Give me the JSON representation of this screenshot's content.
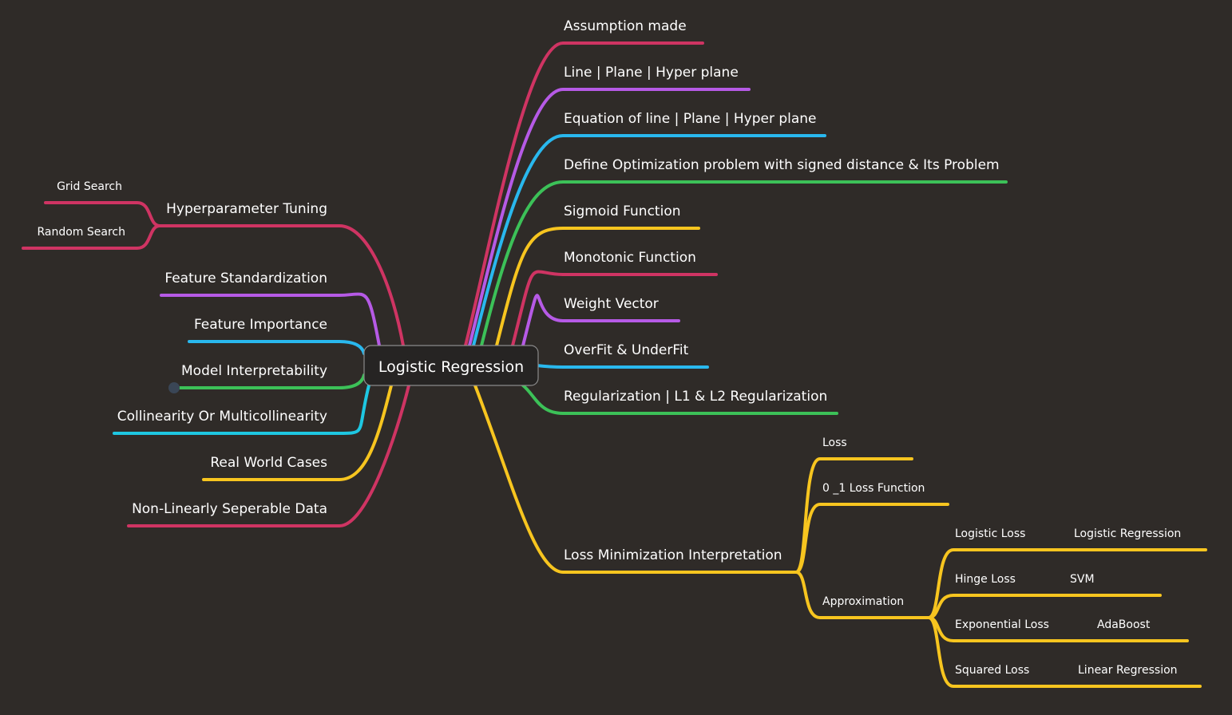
{
  "colors": {
    "background": "#2f2b28",
    "red": "#cf3463",
    "purple": "#b65ae6",
    "blue": "#29b8ee",
    "green": "#3cc158",
    "yellow": "#f7c51f",
    "cyan": "#1ec7e2",
    "center_fill": "#262423",
    "center_border": "#8a8a8a"
  },
  "center": {
    "label": "Logistic Regression"
  },
  "right_topics": [
    {
      "label": "Assumption made",
      "color": "red"
    },
    {
      "label": "Line | Plane | Hyper plane",
      "color": "purple"
    },
    {
      "label": "Equation of line | Plane | Hyper plane",
      "color": "blue"
    },
    {
      "label": "Define Optimization problem with signed distance & Its Problem",
      "color": "green"
    },
    {
      "label": "Sigmoid Function",
      "color": "yellow"
    },
    {
      "label": "Monotonic Function",
      "color": "red"
    },
    {
      "label": "Weight Vector",
      "color": "purple"
    },
    {
      "label": "OverFit & UnderFit",
      "color": "blue"
    },
    {
      "label": "Regularization | L1 & L2 Regularization",
      "color": "green"
    },
    {
      "label": "Loss Minimization Interpretation",
      "color": "yellow"
    }
  ],
  "loss_subtopics": [
    {
      "label": "Loss"
    },
    {
      "label": "0 _1 Loss Function"
    },
    {
      "label": "Approximation"
    }
  ],
  "approximation_items": [
    {
      "loss": "Logistic Loss",
      "model": "Logistic Regression"
    },
    {
      "loss": "Hinge Loss",
      "model": "SVM"
    },
    {
      "loss": "Exponential Loss",
      "model": "AdaBoost"
    },
    {
      "loss": "Squared Loss",
      "model": "Linear Regression"
    }
  ],
  "left_topics": [
    {
      "label": "Hyperparameter Tuning",
      "color": "red"
    },
    {
      "label": "Feature Standardization",
      "color": "purple"
    },
    {
      "label": "Feature Importance",
      "color": "blue"
    },
    {
      "label": "Model Interpretability",
      "color": "green"
    },
    {
      "label": "Collinearity Or Multicollinearity",
      "color": "cyan"
    },
    {
      "label": "Real World Cases",
      "color": "yellow"
    },
    {
      "label": "Non-Linearly Seperable Data",
      "color": "red"
    }
  ],
  "hyperparameter_subtopics": [
    {
      "label": "Grid Search"
    },
    {
      "label": "Random Search"
    }
  ]
}
